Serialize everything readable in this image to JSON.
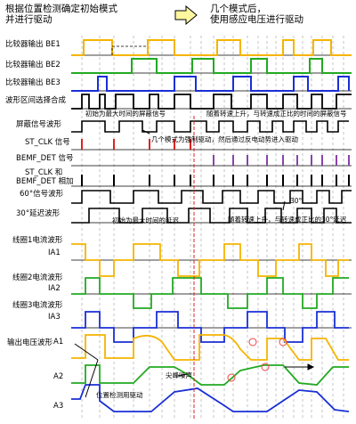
{
  "header": {
    "left_line1": "根据位置检测确定初始模式",
    "left_line2": "并进行驱动",
    "right_line1": "几个模式后，",
    "right_line2": "使用感应电压进行驱动"
  },
  "rows": {
    "be1": "比较器输出 BE1",
    "be2": "比较器输出 BE2",
    "be3": "比较器输出 BE3",
    "wave": "波形区间选择合成",
    "mask": "屏蔽信号波形",
    "stclk": "ST_CLK 信号",
    "bemf": "BEMF_DET 信号",
    "sum_line1": "ST_CLK 和",
    "sum_line2": "BEMF_DET 相加",
    "sixty": "60°信号波形",
    "thirty": "30°延迟波形",
    "coil1": "线圈1电流波形",
    "ia1": "IA1",
    "coil2": "线圈2电流波形",
    "ia2": "IA2",
    "coil3": "线圈3电流波形",
    "ia3": "IA3",
    "output": "输出电压波形",
    "a1": "A1",
    "a2": "A2",
    "a3": "A3"
  },
  "annotations": {
    "mask_initial": "初始为最大时间的屏蔽信号",
    "mask_speed": "随着转速上升，与转速成正比的时间的屏蔽信号",
    "forced": "几个模式为强制驱动，然后通过反电动势进入驱动",
    "delay_initial": "初始为最大时间的延迟",
    "delay_speed": "随着转速上升，与转速成正比的30°延迟",
    "thirty_deg": "30°",
    "spike": "尖峰噪声",
    "pos_detect": "位置检测用驱动"
  },
  "colors": {
    "yellow": "#f5b400",
    "green": "#22aa22",
    "blue": "#1a2fd6",
    "red": "#dd2222",
    "purple": "#8844aa",
    "black": "#000000",
    "grid": "#888888"
  }
}
